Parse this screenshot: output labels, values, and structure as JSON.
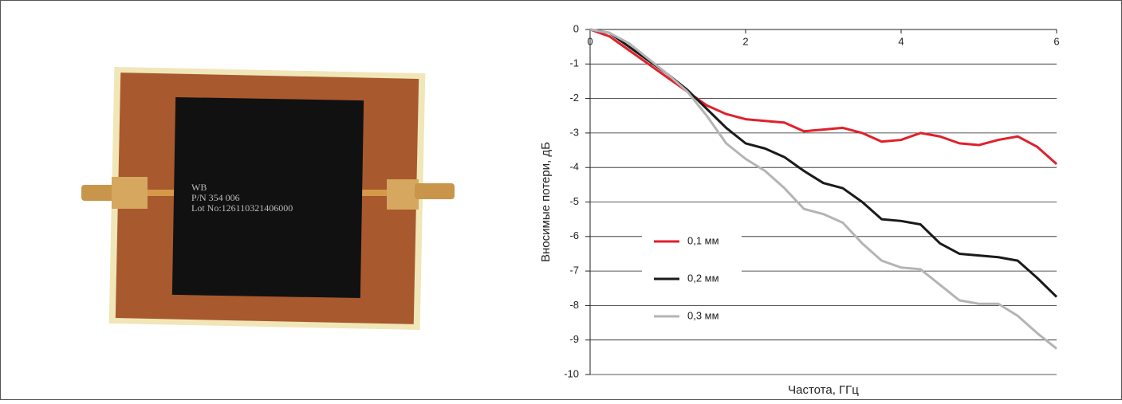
{
  "photo_text": [
    "WB",
    "P/N 354 006",
    "Lot No:126110321406000"
  ],
  "chart_data": {
    "type": "line",
    "x_label": "Частота, ГГц",
    "y_label": "Вносимые потери, дБ",
    "x": [
      0,
      0.25,
      0.5,
      0.75,
      1,
      1.25,
      1.5,
      1.75,
      2,
      2.25,
      2.5,
      2.75,
      3,
      3.25,
      3.5,
      3.75,
      4,
      4.25,
      4.5,
      4.75,
      5,
      5.25,
      5.5,
      5.75,
      6
    ],
    "series": [
      {
        "name": "0,1 мм",
        "color": "#e0202a",
        "values": [
          0,
          -0.2,
          -0.6,
          -1.0,
          -1.4,
          -1.8,
          -2.2,
          -2.45,
          -2.6,
          -2.65,
          -2.7,
          -2.95,
          -2.9,
          -2.85,
          -3.0,
          -3.25,
          -3.2,
          -3.0,
          -3.1,
          -3.3,
          -3.35,
          -3.2,
          -3.1,
          -3.4,
          -3.9
        ]
      },
      {
        "name": "0,2 мм",
        "color": "#1a1a1a",
        "values": [
          0,
          -0.1,
          -0.5,
          -0.9,
          -1.3,
          -1.75,
          -2.3,
          -2.85,
          -3.3,
          -3.45,
          -3.7,
          -4.1,
          -4.45,
          -4.6,
          -5.0,
          -5.5,
          -5.55,
          -5.65,
          -6.2,
          -6.5,
          -6.55,
          -6.6,
          -6.7,
          -7.2,
          -7.75
        ]
      },
      {
        "name": "0,3 мм",
        "color": "#b4b4b4",
        "values": [
          0,
          -0.1,
          -0.4,
          -0.85,
          -1.3,
          -1.8,
          -2.5,
          -3.3,
          -3.75,
          -4.1,
          -4.6,
          -5.2,
          -5.35,
          -5.6,
          -6.2,
          -6.7,
          -6.9,
          -6.95,
          -7.4,
          -7.85,
          -7.95,
          -7.95,
          -8.3,
          -8.8,
          -9.25
        ]
      }
    ],
    "xlim": [
      0,
      6
    ],
    "xticks": [
      0,
      2,
      4,
      6
    ],
    "ylim": [
      -10,
      0
    ],
    "yticks": [
      0,
      -1,
      -2,
      -3,
      -4,
      -5,
      -6,
      -7,
      -8,
      -9,
      -10
    ],
    "grid": true,
    "legend": "lower-left"
  }
}
